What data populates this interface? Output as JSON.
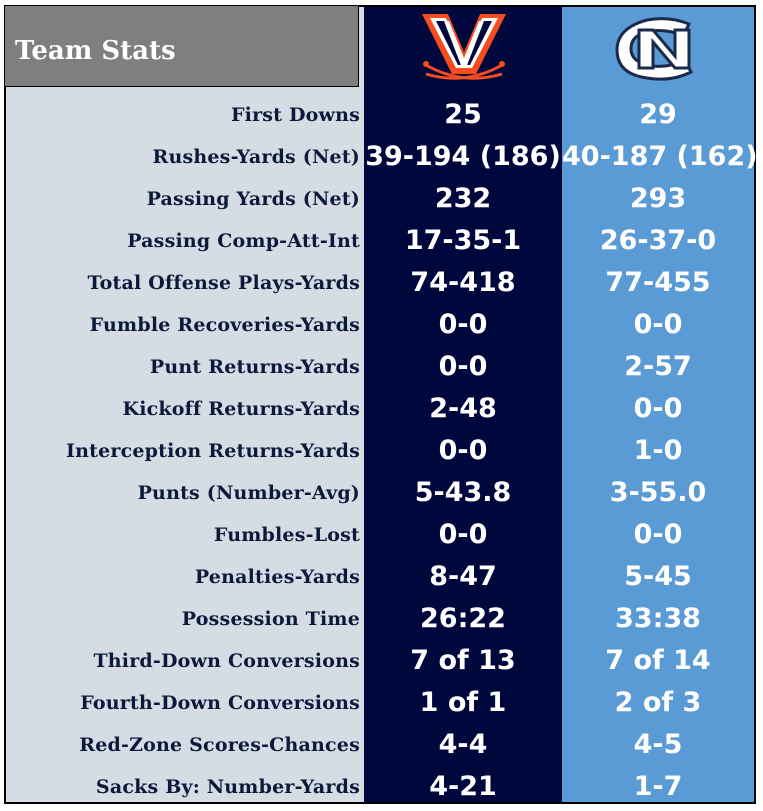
{
  "header": {
    "title": "Team Stats"
  },
  "teams": [
    {
      "id": "uva",
      "logo_icon": "virginia-v-sabres-logo",
      "color": "#00073d",
      "accent": "#f84c1e"
    },
    {
      "id": "unc",
      "logo_icon": "unc-nc-interlock-logo",
      "color": "#5b9bd5"
    }
  ],
  "rows": [
    {
      "label": "First Downs",
      "uva": "25",
      "unc": "29"
    },
    {
      "label": "Rushes-Yards (Net)",
      "uva": "39-194 (186)",
      "unc": "40-187 (162)"
    },
    {
      "label": "Passing Yards (Net)",
      "uva": "232",
      "unc": "293"
    },
    {
      "label": "Passing Comp-Att-Int",
      "uva": "17-35-1",
      "unc": "26-37-0"
    },
    {
      "label": "Total Offense Plays-Yards",
      "uva": "74-418",
      "unc": "77-455"
    },
    {
      "label": "Fumble Recoveries-Yards",
      "uva": "0-0",
      "unc": "0-0"
    },
    {
      "label": "Punt Returns-Yards",
      "uva": "0-0",
      "unc": "2-57"
    },
    {
      "label": "Kickoff Returns-Yards",
      "uva": "2-48",
      "unc": "0-0"
    },
    {
      "label": "Interception Returns-Yards",
      "uva": "0-0",
      "unc": "1-0"
    },
    {
      "label": "Punts (Number-Avg)",
      "uva": "5-43.8",
      "unc": "3-55.0"
    },
    {
      "label": "Fumbles-Lost",
      "uva": "0-0",
      "unc": "0-0"
    },
    {
      "label": "Penalties-Yards",
      "uva": "8-47",
      "unc": "5-45"
    },
    {
      "label": "Possession Time",
      "uva": "26:22",
      "unc": "33:38"
    },
    {
      "label": "Third-Down Conversions",
      "uva": "7 of 13",
      "unc": "7 of 14"
    },
    {
      "label": "Fourth-Down Conversions",
      "uva": "1 of 1",
      "unc": "2 of 3"
    },
    {
      "label": "Red-Zone Scores-Chances",
      "uva": "4-4",
      "unc": "4-5"
    },
    {
      "label": "Sacks By: Number-Yards",
      "uva": "4-21",
      "unc": "1-7"
    }
  ]
}
